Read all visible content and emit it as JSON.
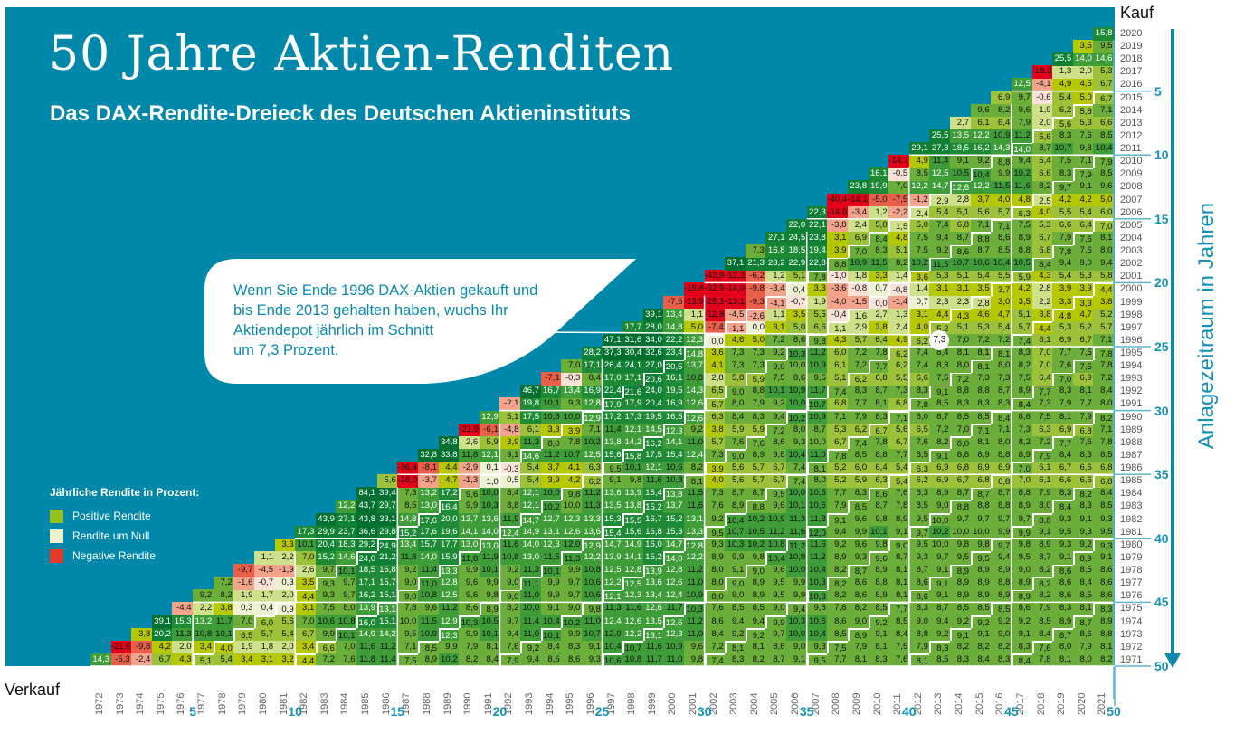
{
  "header": {
    "title": "50 Jahre Aktien-Renditen",
    "subtitle": "Das DAX-Rendite-Dreieck des Deutschen Aktieninstituts"
  },
  "legend": {
    "title": "Jährliche Rendite in Prozent:",
    "items": [
      {
        "label": "Positive Rendite",
        "color": "#95c11f"
      },
      {
        "label": "Rendite um Null",
        "color": "#eef1cc"
      },
      {
        "label": "Negative Rendite",
        "color": "#e33b2a"
      }
    ]
  },
  "callout": {
    "lines": [
      "Wenn Sie Ende 1996 DAX-Aktien gekauft und",
      "bis Ende 2013 gehalten haben, wuchs Ihr",
      "Aktiendepot jährlich im Schnitt",
      "um 7,3 Prozent."
    ],
    "highlight": {
      "buy": 1996,
      "sell": 2013,
      "value": "7,3"
    }
  },
  "chart_data": {
    "type": "heatmap",
    "title": "50 Jahre Aktien-Renditen",
    "xlabel": "Verkauf",
    "ylabel": "Kauf",
    "y2label": "Anlagezeitraum in Jahren",
    "sell_years": [
      1972,
      1973,
      1974,
      1975,
      1976,
      1977,
      1978,
      1979,
      1980,
      1981,
      1982,
      1983,
      1984,
      1985,
      1986,
      1987,
      1988,
      1989,
      1990,
      1991,
      1992,
      1993,
      1994,
      1995,
      1996,
      1997,
      1998,
      1999,
      2000,
      2001,
      2002,
      2003,
      2004,
      2005,
      2006,
      2007,
      2008,
      2009,
      2010,
      2011,
      2012,
      2013,
      2014,
      2015,
      2016,
      2017,
      2018,
      2019,
      2020,
      2021
    ],
    "buy_years": [
      2020,
      2019,
      2018,
      2017,
      2016,
      2015,
      2014,
      2013,
      2012,
      2011,
      2010,
      2009,
      2008,
      2007,
      2006,
      2005,
      2004,
      2003,
      2002,
      2001,
      2000,
      1999,
      1998,
      1997,
      1996,
      1995,
      1994,
      1993,
      1992,
      1991,
      1990,
      1989,
      1988,
      1987,
      1986,
      1985,
      1984,
      1983,
      1982,
      1981,
      1980,
      1979,
      1978,
      1977,
      1976,
      1975,
      1974,
      1973,
      1972,
      1971
    ],
    "annual_returns_by_sell_year": [
      14.3,
      -21.6,
      3.8,
      39.1,
      -4.4,
      9.2,
      7.2,
      -9.7,
      1.1,
      3.3,
      17.3,
      43.9,
      12.2,
      84.1,
      5.6,
      -36.4,
      32.8,
      34.8,
      -21.9,
      12.9,
      -2.1,
      46.7,
      -7.1,
      7.0,
      28.2,
      47.1,
      17.7,
      39.1,
      -7.5,
      -19.8,
      -43.9,
      37.1,
      7.3,
      27.1,
      22.0,
      22.3,
      -40.4,
      23.8,
      16.1,
      -14.7,
      29.1,
      25.5,
      2.7,
      9.6,
      6.9,
      12.5,
      -18.3,
      25.5,
      3.5,
      15.8
    ],
    "cell_value": "annualized average return from end of buy year to end of sell year, in percent",
    "horizon_ticks": [
      5,
      10,
      15,
      20,
      25,
      30,
      35,
      40,
      45,
      50
    ]
  }
}
